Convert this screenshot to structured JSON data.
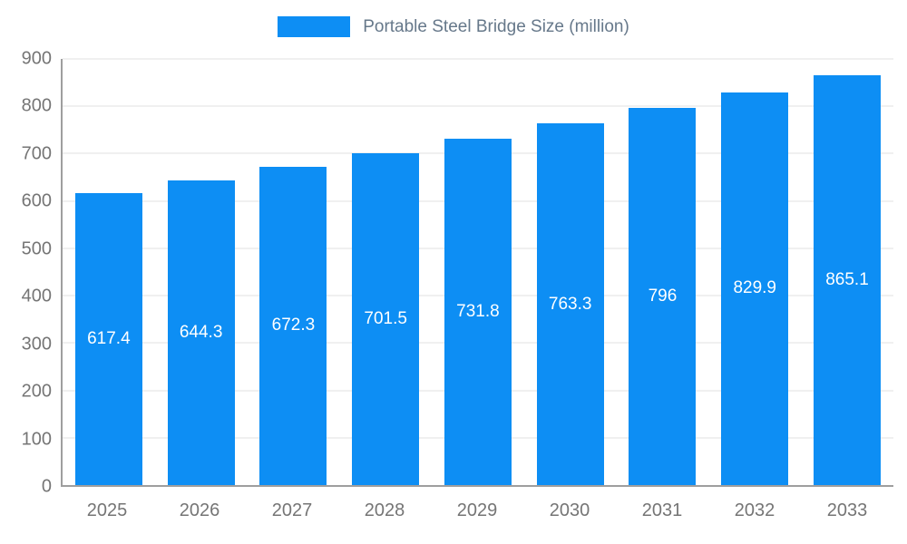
{
  "legend": {
    "label": "Portable Steel Bridge Size (million)"
  },
  "chart_data": {
    "type": "bar",
    "title": "Portable Steel Bridge Size (million)",
    "categories": [
      "2025",
      "2026",
      "2027",
      "2028",
      "2029",
      "2030",
      "2031",
      "2032",
      "2033"
    ],
    "values": [
      617.4,
      644.3,
      672.3,
      701.5,
      731.8,
      763.3,
      796,
      829.9,
      865.1
    ],
    "value_labels": [
      "617.4",
      "644.3",
      "672.3",
      "701.5",
      "731.8",
      "763.3",
      "796",
      "829.9",
      "865.1"
    ],
    "xlabel": "",
    "ylabel": "",
    "ylim": [
      0,
      900
    ],
    "ytick_step": 100,
    "yticks": [
      0,
      100,
      200,
      300,
      400,
      500,
      600,
      700,
      800,
      900
    ],
    "grid": true,
    "legend_position": "top",
    "colors": {
      "bar": "#0d8ef4",
      "bar_value_text": "#ffffff",
      "grid": "#e0e0e0",
      "axis": "#9e9e9e",
      "tick_text": "#757575",
      "legend_text": "#66788a",
      "background": "#ffffff"
    }
  }
}
